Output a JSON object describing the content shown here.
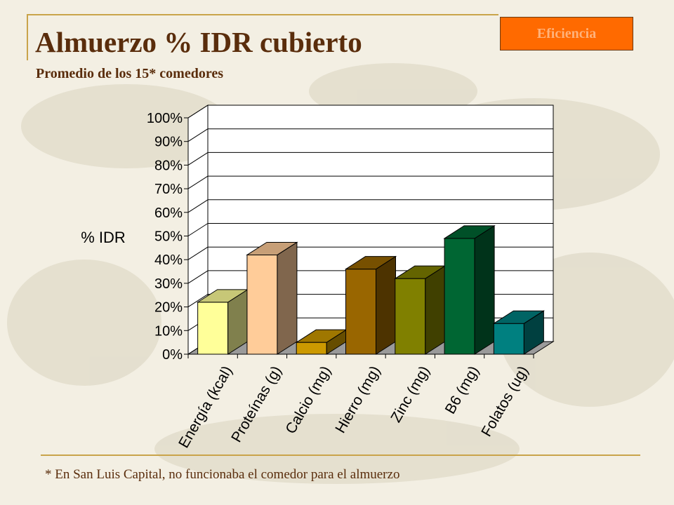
{
  "badge": "Eficiencia",
  "title": "Almuerzo % IDR cubierto",
  "subtitle": "Promedio de los 15* comedores",
  "footnote": "* En San Luis Capital, no funcionaba el comedor para el almuerzo",
  "colors": {
    "title": "#5a2d0c",
    "frame": "#c9a44a",
    "badge_bg": "#ff6a00",
    "badge_text": "#ffb27a"
  },
  "chart_data": {
    "type": "bar",
    "style": "3d",
    "ylabel": "% IDR",
    "ylim": [
      0,
      100
    ],
    "yticks": [
      "0%",
      "10%",
      "20%",
      "30%",
      "40%",
      "50%",
      "60%",
      "70%",
      "80%",
      "90%",
      "100%"
    ],
    "grid": true,
    "categories": [
      "Energía (kcal)",
      "Proteínas (g)",
      "Calcio (mg)",
      "Hierro (mg)",
      "Zinc (mg)",
      "B6 (mg)",
      "Folatos (ug)"
    ],
    "values": [
      22,
      42,
      5,
      36,
      32,
      49,
      13
    ],
    "colors": [
      "#ffff99",
      "#ffcc99",
      "#cc9900",
      "#996600",
      "#808000",
      "#006633",
      "#008080"
    ]
  }
}
